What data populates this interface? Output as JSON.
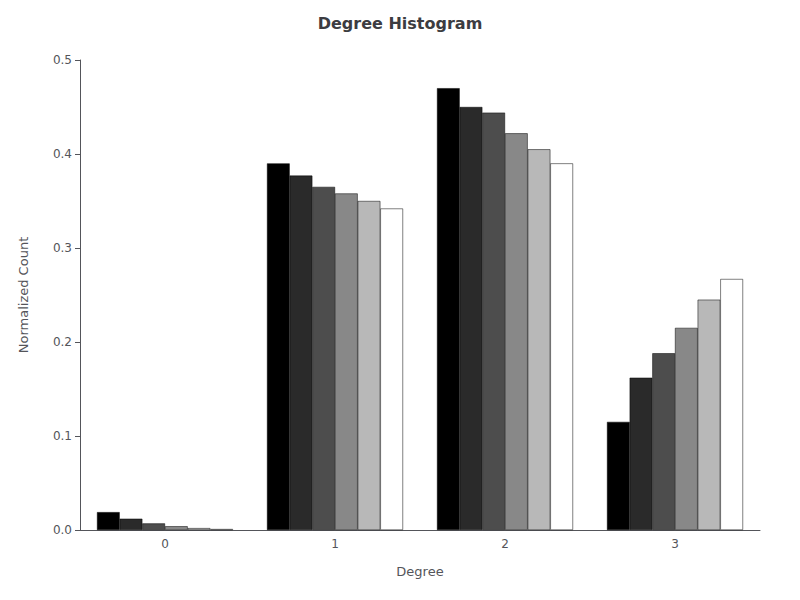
{
  "chart_data": {
    "type": "bar",
    "title": "Degree Histogram",
    "xlabel": "Degree",
    "ylabel": "Normalized Count",
    "categories": [
      "0",
      "1",
      "2",
      "3"
    ],
    "series": [
      {
        "color": "#000000",
        "values": [
          0.019,
          0.39,
          0.47,
          0.115
        ]
      },
      {
        "color": "#2a2a2a",
        "values": [
          0.012,
          0.377,
          0.45,
          0.162
        ]
      },
      {
        "color": "#4d4d4d",
        "values": [
          0.007,
          0.365,
          0.444,
          0.188
        ]
      },
      {
        "color": "#888888",
        "values": [
          0.004,
          0.358,
          0.422,
          0.215
        ]
      },
      {
        "color": "#b8b8b8",
        "values": [
          0.002,
          0.35,
          0.405,
          0.245
        ]
      },
      {
        "color": "#ffffff",
        "values": [
          0.001,
          0.342,
          0.39,
          0.267
        ]
      }
    ],
    "ylim": [
      0,
      0.5
    ],
    "yticks": [
      {
        "value": 0,
        "label": "0.0"
      },
      {
        "value": 0.1,
        "label": "0.1"
      },
      {
        "value": 0.2,
        "label": "0.2"
      },
      {
        "value": 0.3,
        "label": "0.3"
      },
      {
        "value": 0.4,
        "label": "0.4"
      },
      {
        "value": 0.5,
        "label": "0.5"
      }
    ],
    "grid": false
  }
}
